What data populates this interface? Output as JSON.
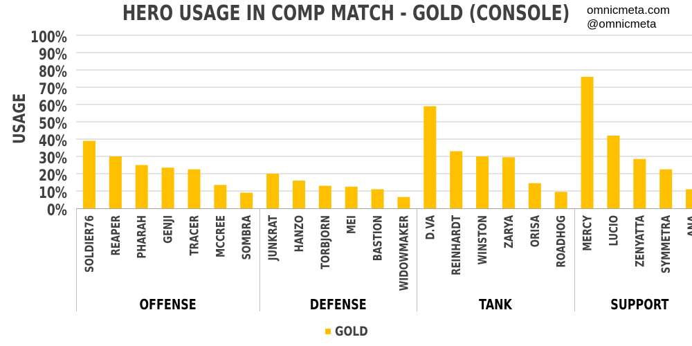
{
  "header": {
    "title": "HERO USAGE IN COMP MATCH - GOLD (CONSOLE)",
    "credit_line1": "omnicmeta.com",
    "credit_line2": "@omnicmeta"
  },
  "chart_data": {
    "type": "bar",
    "title": "HERO USAGE IN COMP MATCH - GOLD (CONSOLE)",
    "ylabel": "USAGE",
    "xlabel": "",
    "ylim": [
      0,
      100
    ],
    "yticks": [
      "0%",
      "10%",
      "20%",
      "30%",
      "40%",
      "50%",
      "60%",
      "70%",
      "80%",
      "90%",
      "100%"
    ],
    "grid": true,
    "legend_position": "bottom",
    "categories": [
      "SOLDIER76",
      "REAPER",
      "PHARAH",
      "GENJI",
      "TRACER",
      "MCCREE",
      "SOMBRA",
      "JUNKRAT",
      "HANZO",
      "TORBJORN",
      "MEI",
      "BASTION",
      "WIDOWMAKER",
      "D.VA",
      "REINHARDT",
      "WINSTON",
      "ZARYA",
      "ORISA",
      "ROADHOG",
      "MERCY",
      "LUCIO",
      "ZENYATTA",
      "SYMMETRA",
      "ANA"
    ],
    "groups": [
      {
        "name": "OFFENSE",
        "count": 7
      },
      {
        "name": "DEFENSE",
        "count": 6
      },
      {
        "name": "TANK",
        "count": 6
      },
      {
        "name": "SUPPORT",
        "count": 5
      }
    ],
    "series": [
      {
        "name": "GOLD",
        "color": "#FFC000",
        "values": [
          39,
          30,
          25,
          23.5,
          22.5,
          13.5,
          9,
          20,
          16,
          13,
          12.5,
          11,
          6.5,
          59,
          33,
          30,
          29.5,
          14.5,
          9.5,
          76,
          42,
          28.5,
          22.5,
          11
        ]
      }
    ]
  }
}
